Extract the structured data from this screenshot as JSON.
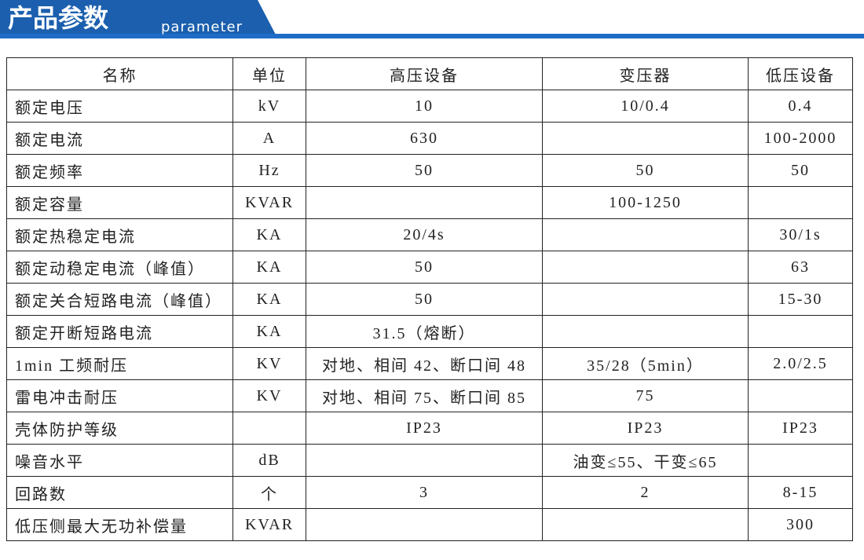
{
  "header": {
    "title": "产品参数",
    "subtitle": "parameter"
  },
  "table": {
    "columns": [
      "名称",
      "单位",
      "高压设备",
      "变压器",
      "低压设备"
    ],
    "rows": [
      [
        "额定电压",
        "kV",
        "10",
        "10/0.4",
        "0.4"
      ],
      [
        "额定电流",
        "A",
        "630",
        null,
        "100-2000"
      ],
      [
        "额定频率",
        "Hz",
        "50",
        "50",
        "50"
      ],
      [
        "额定容量",
        "KVAR",
        null,
        "100-1250",
        null
      ],
      [
        "额定热稳定电流",
        "KA",
        "20/4s",
        null,
        "30/1s"
      ],
      [
        "额定动稳定电流（峰值）",
        "KA",
        "50",
        null,
        "63"
      ],
      [
        "额定关合短路电流（峰值）",
        "KA",
        "50",
        null,
        "15-30"
      ],
      [
        "额定开断短路电流",
        "KA",
        "31.5（熔断）",
        null,
        null
      ],
      [
        "1min 工频耐压",
        "KV",
        "对地、相间 42、断口间 48",
        "35/28（5min）",
        "2.0/2.5"
      ],
      [
        "雷电冲击耐压",
        "KV",
        "对地、相间 75、断口间 85",
        "75",
        null
      ],
      [
        "壳体防护等级",
        null,
        "IP23",
        "IP23",
        "IP23"
      ],
      [
        "噪音水平",
        "dB",
        null,
        "油变≤55、干变≤65",
        null
      ],
      [
        "回路数",
        "个",
        "3",
        "2",
        "8-15"
      ],
      [
        "低压侧最大无功补偿量",
        "KVAR",
        null,
        null,
        "300"
      ]
    ]
  }
}
